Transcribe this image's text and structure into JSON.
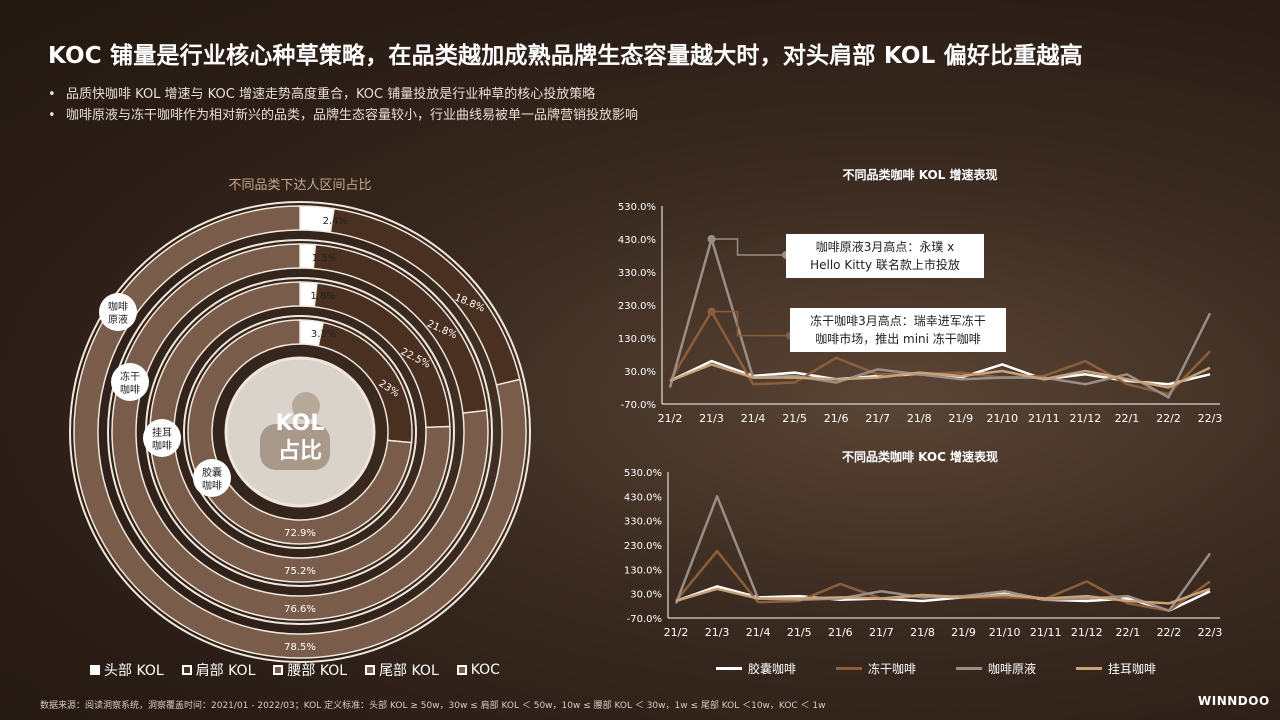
{
  "title": "KOC 铺量是行业核心种草策略，在品类越加成熟品牌生态容量越大时，对头肩部 KOL 偏好比重越高",
  "bullets": [
    "品质快咖啡 KOL 增速与 KOC 增速走势高度重合，KOC 铺量投放是行业种草的核心投放策略",
    "咖啡原液与冻干咖啡作为相对新兴的品类，品牌生态容量较小，行业曲线易被单一品牌营销投放影响"
  ],
  "donut": {
    "title": "不同品类下达人区间占比",
    "center_label": "KOL\n占比",
    "center_lines": [
      "KOL",
      "占比"
    ],
    "ring_labels": [
      [
        "咖啡",
        "原液"
      ],
      [
        "冻干",
        "咖啡"
      ],
      [
        "挂耳",
        "咖啡"
      ],
      [
        "胶囊",
        "咖啡"
      ]
    ],
    "rings": [
      {
        "name": "咖啡原液",
        "segments": [
          2.4,
          18.8,
          0,
          0,
          78.5
        ],
        "labels": [
          "2.4%",
          "18.8%",
          "78.5%"
        ]
      },
      {
        "name": "冻干咖啡",
        "segments": [
          1.3,
          21.8,
          0,
          0,
          76.6
        ],
        "labels": [
          "1.3%",
          "21.8%",
          "76.6%"
        ]
      },
      {
        "name": "挂耳咖啡",
        "segments": [
          1.8,
          22.5,
          0,
          0,
          75.2
        ],
        "labels": [
          "1.8%",
          "22.5%",
          "75.2%"
        ]
      },
      {
        "name": "胶囊咖啡",
        "segments": [
          3.3,
          23.0,
          0,
          0,
          72.9
        ],
        "labels": [
          "3.3%",
          "23%",
          "72.9%"
        ]
      }
    ],
    "legend": [
      "头部 KOL",
      "肩部 KOL",
      "腰部 KOL",
      "尾部 KOL",
      "KOC"
    ],
    "colors": {
      "top": "#ffffff",
      "shoulder": "#4a3020",
      "rest": "#7a5c4a",
      "ring_border": "#f0e6dc"
    }
  },
  "chart_data": [
    {
      "type": "line",
      "title": "不同品类咖啡 KOL 增速表现",
      "categories": [
        "21/2",
        "21/3",
        "21/4",
        "21/5",
        "21/6",
        "21/7",
        "21/8",
        "21/9",
        "21/10",
        "21/11",
        "21/12",
        "22/1",
        "22/2",
        "22/3"
      ],
      "y_ticks": [
        "530.0%",
        "430.0%",
        "330.0%",
        "230.0%",
        "130.0%",
        "30.0%",
        "-70.0%"
      ],
      "ylim": [
        -70,
        530
      ],
      "series": [
        {
          "name": "胶囊咖啡",
          "color": "#ffffff",
          "values": [
            0,
            60,
            15,
            25,
            5,
            15,
            20,
            10,
            50,
            5,
            20,
            0,
            -10,
            20
          ]
        },
        {
          "name": "冻干咖啡",
          "color": "#8b5e3c",
          "values": [
            0,
            210,
            -10,
            -5,
            70,
            20,
            20,
            25,
            10,
            15,
            60,
            -10,
            -40,
            90
          ]
        },
        {
          "name": "咖啡原液",
          "color": "#9a8e86",
          "values": [
            -20,
            430,
            10,
            15,
            -5,
            35,
            20,
            5,
            10,
            10,
            -10,
            20,
            -50,
            205
          ]
        },
        {
          "name": "挂耳咖啡",
          "color": "#c9a27a",
          "values": [
            0,
            50,
            10,
            10,
            5,
            10,
            25,
            15,
            30,
            5,
            30,
            5,
            -20,
            40
          ]
        }
      ],
      "annotations": [
        {
          "text": "咖啡原液3月高点：永璞 x Hello Kitty 联名款上市投放",
          "lines": [
            "咖啡原液3月高点：永璞 x",
            "Hello Kitty 联名款上市投放"
          ]
        },
        {
          "text": "冻干咖啡3月高点：瑞幸进军冻干咖啡市场，推出 mini 冻干咖啡",
          "lines": [
            "冻干咖啡3月高点：瑞幸进军冻干",
            "咖啡市场，推出 mini 冻干咖啡"
          ]
        }
      ]
    },
    {
      "type": "line",
      "title": "不同品类咖啡 KOC 增速表现",
      "categories": [
        "21/2",
        "21/3",
        "21/4",
        "21/5",
        "21/6",
        "21/7",
        "21/8",
        "21/9",
        "21/10",
        "21/11",
        "21/12",
        "22/1",
        "22/2",
        "22/3"
      ],
      "y_ticks": [
        "530.0%",
        "430.0%",
        "330.0%",
        "230.0%",
        "130.0%",
        "30.0%",
        "-70.0%"
      ],
      "ylim": [
        -70,
        530
      ],
      "series": [
        {
          "name": "胶囊咖啡",
          "color": "#ffffff",
          "values": [
            0,
            60,
            15,
            20,
            5,
            10,
            0,
            15,
            30,
            5,
            0,
            10,
            -40,
            40
          ]
        },
        {
          "name": "冻干咖啡",
          "color": "#8b5e3c",
          "values": [
            0,
            205,
            -5,
            0,
            70,
            10,
            20,
            15,
            15,
            10,
            80,
            -10,
            -40,
            80
          ]
        },
        {
          "name": "咖啡原液",
          "color": "#9a8e86",
          "values": [
            -10,
            430,
            10,
            5,
            10,
            40,
            15,
            20,
            40,
            5,
            10,
            20,
            -40,
            195
          ]
        },
        {
          "name": "挂耳咖啡",
          "color": "#c9a27a",
          "values": [
            0,
            50,
            10,
            10,
            15,
            10,
            25,
            15,
            25,
            10,
            20,
            0,
            -10,
            50
          ]
        }
      ]
    }
  ],
  "line_legend": [
    "胶囊咖啡",
    "冻干咖啡",
    "咖啡原液",
    "挂耳咖啡"
  ],
  "footer": "数据来源：阅读洞察系统，洞察覆盖时间：2021/01 - 2022/03；KOL 定义标准：头部 KOL ≥ 50w，30w ≤ 肩部 KOL ＜ 50w，10w ≤ 腰部 KOL ＜ 30w，1w ≤ 尾部 KOL ＜10w，KOC ＜ 1w",
  "brand": "WINNDOO"
}
